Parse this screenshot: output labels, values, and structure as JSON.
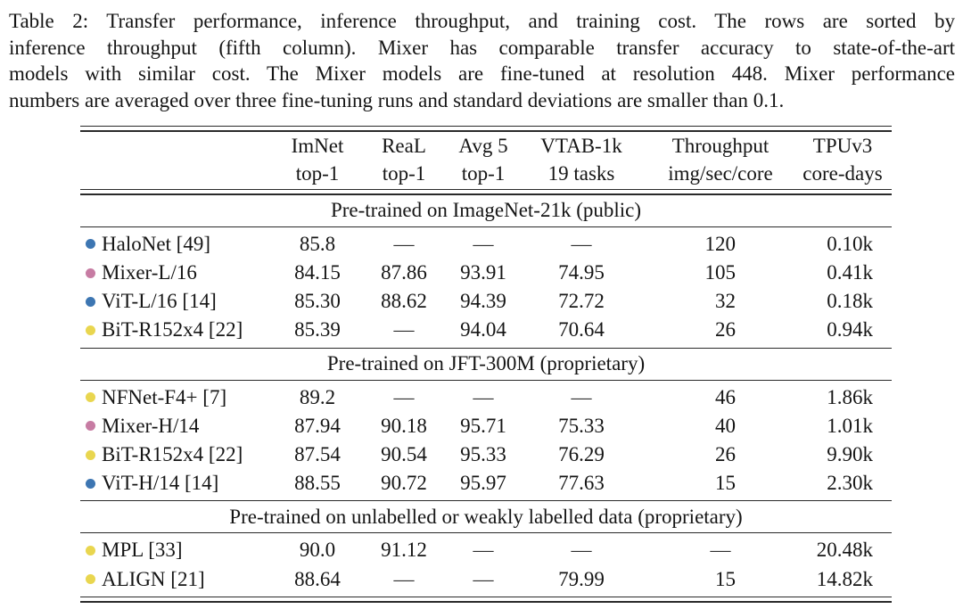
{
  "caption": {
    "lines": [
      "Table 2: Transfer performance, inference throughput, and training cost. The rows are sorted by",
      "inference throughput (fifth column). Mixer has comparable transfer accuracy to state-of-the-art",
      "models with similar cost. The Mixer models are fine-tuned at resolution 448. Mixer performance",
      "numbers are averaged over three fine-tuning runs and standard deviations are smaller than 0.1."
    ]
  },
  "colors": {
    "blue": "#3d76b2",
    "pink": "#c77ca3",
    "yellow": "#e9d64f",
    "rule": "#2a2a2a",
    "text": "#151515"
  },
  "table": {
    "header": [
      {
        "l1": "ImNet",
        "l2": "top-1"
      },
      {
        "l1": "ReaL",
        "l2": "top-1"
      },
      {
        "l1": "Avg 5",
        "l2": "top-1"
      },
      {
        "l1": "VTAB-1k",
        "l2": "19 tasks"
      },
      {
        "l1": "Throughput",
        "l2": "img/sec/core"
      },
      {
        "l1": "TPUv3",
        "l2": "core-days"
      }
    ],
    "sections": [
      {
        "title": "Pre-trained on ImageNet-21k (public)",
        "rows": [
          {
            "dot": "blue",
            "model": "HaloNet [49]",
            "values": [
              "85.8",
              "—",
              "—",
              "—",
              "120",
              "0.10k"
            ]
          },
          {
            "dot": "pink",
            "model": "Mixer-L/16",
            "values": [
              "84.15",
              "87.86",
              "93.91",
              "74.95",
              "105",
              "0.41k"
            ]
          },
          {
            "dot": "blue",
            "model": "ViT-L/16 [14]",
            "values": [
              "85.30",
              "88.62",
              "94.39",
              "72.72",
              "32",
              "0.18k"
            ]
          },
          {
            "dot": "yellow",
            "model": "BiT-R152x4 [22]",
            "values": [
              "85.39",
              "—",
              "94.04",
              "70.64",
              "26",
              "0.94k"
            ]
          }
        ]
      },
      {
        "title": "Pre-trained on JFT-300M (proprietary)",
        "rows": [
          {
            "dot": "yellow",
            "model": "NFNet-F4+ [7]",
            "values": [
              "89.2",
              "—",
              "—",
              "—",
              "46",
              "1.86k"
            ]
          },
          {
            "dot": "pink",
            "model": "Mixer-H/14",
            "values": [
              "87.94",
              "90.18",
              "95.71",
              "75.33",
              "40",
              "1.01k"
            ]
          },
          {
            "dot": "yellow",
            "model": "BiT-R152x4 [22]",
            "values": [
              "87.54",
              "90.54",
              "95.33",
              "76.29",
              "26",
              "9.90k"
            ]
          },
          {
            "dot": "blue",
            "model": "ViT-H/14 [14]",
            "values": [
              "88.55",
              "90.72",
              "95.97",
              "77.63",
              "15",
              "2.30k"
            ]
          }
        ]
      },
      {
        "title": "Pre-trained on unlabelled or weakly labelled data (proprietary)",
        "rows": [
          {
            "dot": "yellow",
            "model": "MPL [33]",
            "values": [
              "90.0",
              "91.12",
              "—",
              "—",
              "—",
              "20.48k"
            ]
          },
          {
            "dot": "yellow",
            "model": "ALIGN [21]",
            "values": [
              "88.64",
              "—",
              "—",
              "79.99",
              "15",
              "14.82k"
            ]
          }
        ]
      }
    ]
  }
}
